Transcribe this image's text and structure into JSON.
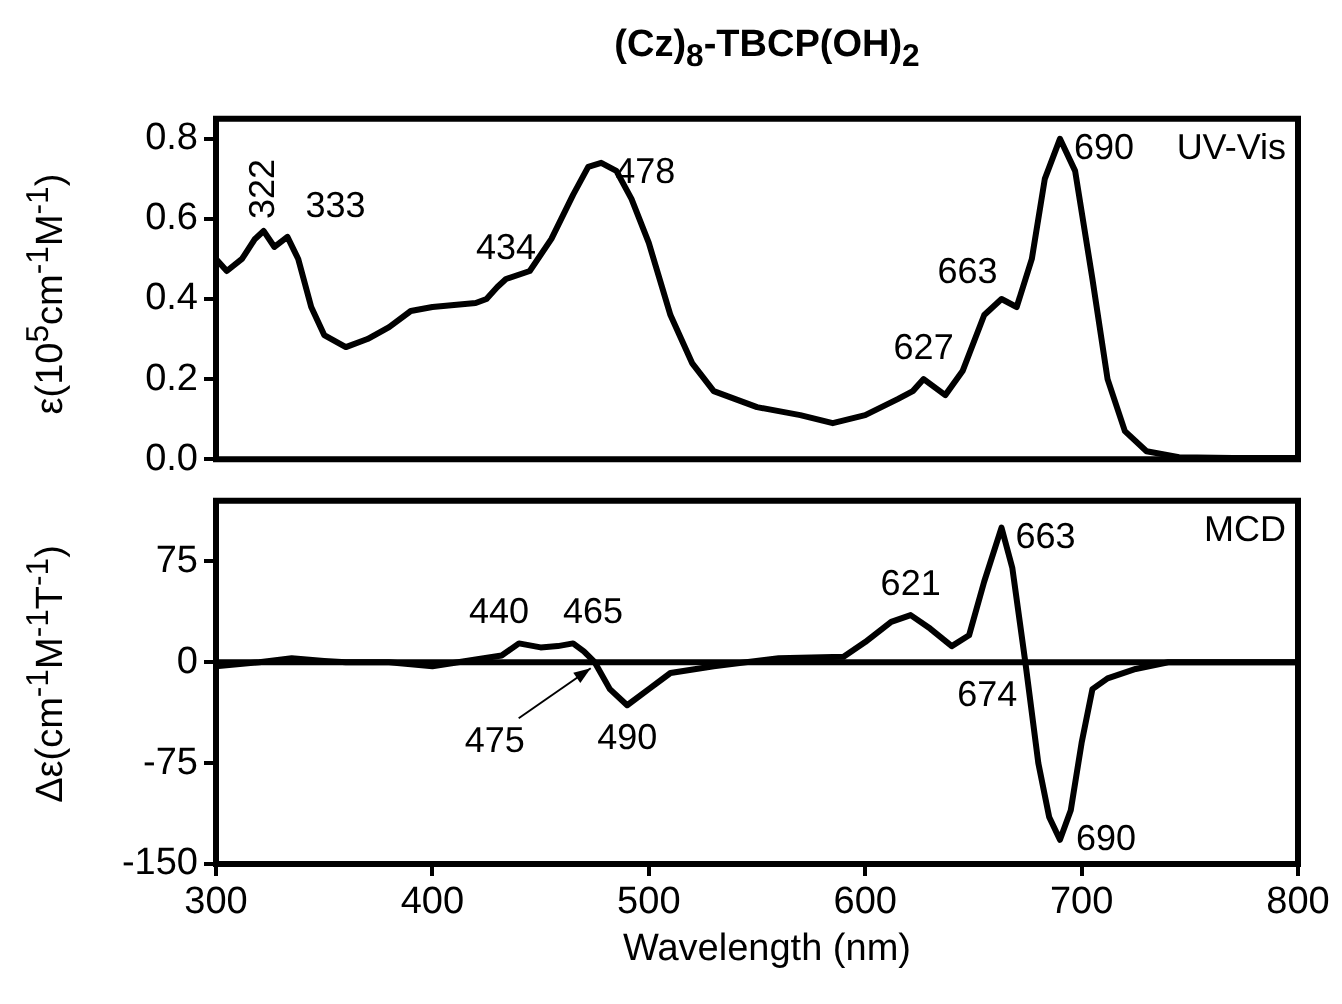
{
  "chart_data": [
    {
      "type": "line",
      "title": "(Cz)$_{8}$-TBCP(OH)$_{2}$",
      "ylabel": "ε(10$^{5}$cm$^{-1}$M$^{-1}$)",
      "xlim": [
        300,
        800
      ],
      "xticks": [
        300,
        400,
        500,
        600,
        700,
        800
      ],
      "ylim": [
        0,
        0.85
      ],
      "yticks": [
        {
          "value": 0,
          "label": "0.0"
        },
        {
          "value": 0.2,
          "label": "0.2"
        },
        {
          "value": 0.4,
          "label": "0.4"
        },
        {
          "value": 0.6,
          "label": "0.6"
        },
        {
          "value": 0.8,
          "label": "0.8"
        }
      ],
      "tick_labels": "y",
      "grid": false,
      "legend": false,
      "marker": "none",
      "line_style": "solid",
      "series": [
        {
          "color": "#000000",
          "x": [
            300,
            305,
            312,
            318,
            322,
            327,
            333,
            338,
            344,
            350,
            360,
            370,
            380,
            390,
            400,
            410,
            420,
            425,
            430,
            434,
            445,
            455,
            465,
            472,
            478,
            485,
            492,
            500,
            510,
            520,
            530,
            550,
            570,
            585,
            600,
            615,
            622,
            627,
            637,
            645,
            655,
            663,
            670,
            677,
            683,
            690,
            697,
            705,
            712,
            720,
            730,
            745,
            770,
            800
          ],
          "values": [
            0.5,
            0.47,
            0.5,
            0.55,
            0.57,
            0.53,
            0.555,
            0.5,
            0.38,
            0.31,
            0.28,
            0.3,
            0.33,
            0.37,
            0.38,
            0.385,
            0.39,
            0.4,
            0.43,
            0.45,
            0.47,
            0.55,
            0.66,
            0.73,
            0.74,
            0.72,
            0.65,
            0.54,
            0.36,
            0.24,
            0.17,
            0.13,
            0.11,
            0.09,
            0.11,
            0.15,
            0.17,
            0.2,
            0.16,
            0.22,
            0.36,
            0.4,
            0.38,
            0.5,
            0.7,
            0.8,
            0.72,
            0.45,
            0.2,
            0.07,
            0.02,
            0.005,
            0.003,
            0.003
          ]
        }
      ],
      "annotations": [
        {
          "text": "322",
          "x": 322,
          "y": 0.57
        },
        {
          "text": "333",
          "x": 333,
          "y": 0.555
        },
        {
          "text": "434",
          "x": 434,
          "y": 0.45
        },
        {
          "text": "478",
          "x": 478,
          "y": 0.74
        },
        {
          "text": "627",
          "x": 627,
          "y": 0.2
        },
        {
          "text": "663",
          "x": 663,
          "y": 0.4
        },
        {
          "text": "690",
          "x": 690,
          "y": 0.8
        },
        "UV-Vis"
      ]
    },
    {
      "type": "line",
      "xlabel": "Wavelength (nm)",
      "ylabel": "Δε(cm$^{-1}$M$^{-1}$T$^{-1}$)",
      "xlim": [
        300,
        800
      ],
      "xticks": [
        300,
        400,
        500,
        600,
        700,
        800
      ],
      "ylim": [
        -150,
        120
      ],
      "yticks": [
        -150,
        -75,
        0,
        75
      ],
      "grid": false,
      "legend": false,
      "marker": "none",
      "line_style": "solid",
      "series": [
        {
          "color": "#000000",
          "x": [
            300,
            320,
            335,
            350,
            360,
            380,
            400,
            420,
            432,
            440,
            450,
            458,
            465,
            470,
            475,
            482,
            490,
            500,
            510,
            530,
            560,
            590,
            600,
            612,
            621,
            630,
            640,
            648,
            655,
            663,
            668,
            674,
            680,
            685,
            690,
            695,
            700,
            705,
            712,
            725,
            740,
            770,
            800
          ],
          "values": [
            -3,
            0,
            3,
            1,
            0,
            0,
            -3,
            2,
            5,
            14,
            11,
            12,
            14,
            8,
            0,
            -20,
            -32,
            -20,
            -8,
            -3,
            3,
            4,
            15,
            30,
            35,
            25,
            12,
            20,
            60,
            100,
            70,
            0,
            -75,
            -115,
            -132,
            -110,
            -60,
            -20,
            -12,
            -5,
            0,
            0,
            0
          ]
        }
      ],
      "ref_lines": [
        {
          "axis": "y",
          "value": 0,
          "color": "#000000"
        }
      ],
      "annotations": [
        {
          "text": "440",
          "x": 440,
          "y": 14
        },
        {
          "text": "465",
          "x": 465,
          "y": 14
        },
        {
          "text": "475",
          "x": 475,
          "y": 0
        },
        {
          "text": "490",
          "x": 490,
          "y": -32
        },
        {
          "text": "621",
          "x": 621,
          "y": 35
        },
        {
          "text": "663",
          "x": 663,
          "y": 100
        },
        {
          "text": "674",
          "x": 674,
          "y": 0
        },
        {
          "text": "690",
          "x": 690,
          "y": -132
        },
        "MCD"
      ]
    }
  ]
}
